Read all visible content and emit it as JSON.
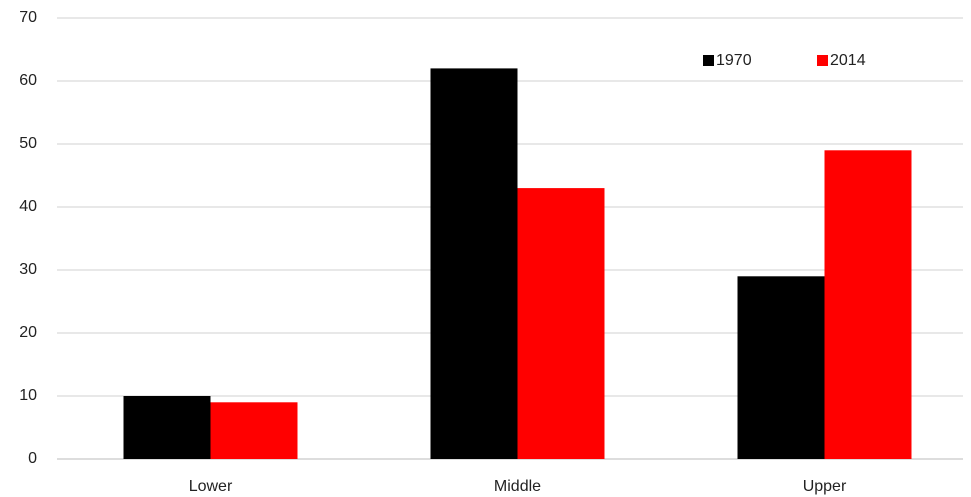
{
  "chart_data": {
    "type": "bar",
    "categories": [
      "Lower",
      "Middle",
      "Upper"
    ],
    "series": [
      {
        "name": "1970",
        "color": "#000000",
        "values": [
          10,
          62,
          29
        ]
      },
      {
        "name": "2014",
        "color": "#ff0000",
        "values": [
          9,
          43,
          49
        ]
      }
    ],
    "ylim": [
      0,
      70
    ],
    "yticks": [
      0,
      10,
      20,
      30,
      40,
      50,
      60,
      70
    ],
    "grid": true,
    "legend": "top-right"
  }
}
